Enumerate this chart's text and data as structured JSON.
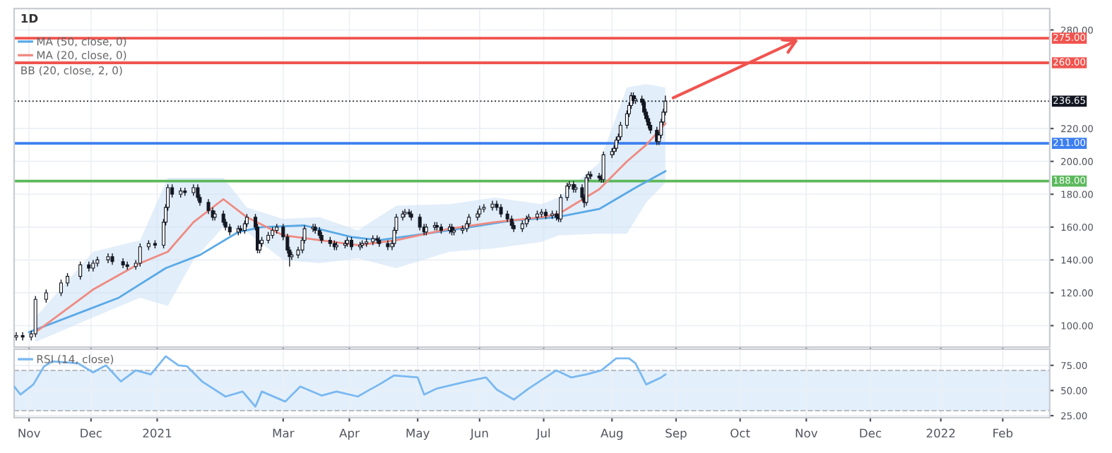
{
  "chart_data": [
    {
      "type": "candlestick",
      "title": "1D",
      "legend": "top left",
      "grid": true,
      "tick_labels": "y",
      "xlim": [
        "2020-10-26",
        "2022-02-23"
      ],
      "ylim": [
        87,
        293
      ],
      "yticks": [
        {
          "value": 100,
          "label": "100.00"
        },
        {
          "value": 120,
          "label": "120.00"
        },
        {
          "value": 140,
          "label": "140.00"
        },
        {
          "value": 160,
          "label": "160.00"
        },
        {
          "value": 180,
          "label": "180.00"
        },
        {
          "value": 200,
          "label": "200.00"
        },
        {
          "value": 220,
          "label": "220.00"
        },
        {
          "value": 280,
          "label": "280.00"
        }
      ],
      "xticks": [
        {
          "value": "2020-11-02",
          "label": null
        },
        {
          "value": "2020-12-01",
          "label": null
        },
        {
          "value": "2021-01-01",
          "label": null
        },
        {
          "value": "2021-03-01",
          "label": null
        },
        {
          "value": "2021-04-01",
          "label": null
        },
        {
          "value": "2021-05-03",
          "label": null
        },
        {
          "value": "2021-06-01",
          "label": null
        },
        {
          "value": "2021-07-01",
          "label": null
        },
        {
          "value": "2021-08-02",
          "label": null
        },
        {
          "value": "2021-09-01",
          "label": null
        },
        {
          "value": "2021-10-01",
          "label": null
        },
        {
          "value": "2021-11-01",
          "label": null
        },
        {
          "value": "2021-12-01",
          "label": null
        },
        {
          "value": "2022-01-03",
          "label": null
        },
        {
          "value": "2022-02-01",
          "label": null
        }
      ],
      "x": [
        "2020-10-27",
        "2020-10-30",
        "2020-11-03",
        "2020-11-05",
        "2020-11-10",
        "2020-11-17",
        "2020-11-20",
        "2020-11-26",
        "2020-11-30",
        "2020-12-02",
        "2020-12-04",
        "2020-12-09",
        "2020-12-11",
        "2020-12-16",
        "2020-12-18",
        "2020-12-22",
        "2020-12-24",
        "2020-12-28",
        "2020-12-31",
        "2021-01-04",
        "2021-01-05",
        "2021-01-06",
        "2021-01-08",
        "2021-01-12",
        "2021-01-14",
        "2021-01-18",
        "2021-01-20",
        "2021-01-21",
        "2021-01-25",
        "2021-01-27",
        "2021-01-28",
        "2021-02-01",
        "2021-02-02",
        "2021-02-04",
        "2021-02-08",
        "2021-02-09",
        "2021-02-11",
        "2021-02-12",
        "2021-02-16",
        "2021-02-17",
        "2021-02-18",
        "2021-02-19",
        "2021-02-22",
        "2021-02-24",
        "2021-02-26",
        "2021-03-01",
        "2021-03-03",
        "2021-03-04",
        "2021-03-05",
        "2021-03-08",
        "2021-03-10",
        "2021-03-11",
        "2021-03-15",
        "2021-03-16",
        "2021-03-18",
        "2021-03-19",
        "2021-03-23",
        "2021-03-25",
        "2021-03-26",
        "2021-03-30",
        "2021-03-31",
        "2021-04-02",
        "2021-04-06",
        "2021-04-07",
        "2021-04-09",
        "2021-04-12",
        "2021-04-14",
        "2021-04-15",
        "2021-04-19",
        "2021-04-21",
        "2021-04-22",
        "2021-04-23",
        "2021-04-26",
        "2021-04-27",
        "2021-04-29",
        "2021-04-30",
        "2021-05-04",
        "2021-05-06",
        "2021-05-07",
        "2021-05-11",
        "2021-05-12",
        "2021-05-14",
        "2021-05-18",
        "2021-05-19",
        "2021-05-20",
        "2021-05-24",
        "2021-05-26",
        "2021-05-27",
        "2021-05-31",
        "2021-06-01",
        "2021-06-03",
        "2021-06-07",
        "2021-06-09",
        "2021-06-11",
        "2021-06-14",
        "2021-06-16",
        "2021-06-17",
        "2021-06-21",
        "2021-06-23",
        "2021-06-24",
        "2021-06-28",
        "2021-06-30",
        "2021-07-02",
        "2021-07-05",
        "2021-07-07",
        "2021-07-08",
        "2021-07-09",
        "2021-07-12",
        "2021-07-13",
        "2021-07-15",
        "2021-07-16",
        "2021-07-19",
        "2021-07-20",
        "2021-07-21",
        "2021-07-22",
        "2021-07-23",
        "2021-07-27",
        "2021-07-28",
        "2021-07-29",
        "2021-08-02",
        "2021-08-03",
        "2021-08-04",
        "2021-08-05",
        "2021-08-06",
        "2021-08-09",
        "2021-08-10",
        "2021-08-11",
        "2021-08-12",
        "2021-08-13",
        "2021-08-16",
        "2021-08-17",
        "2021-08-18",
        "2021-08-19",
        "2021-08-20",
        "2021-08-23",
        "2021-08-24",
        "2021-08-25",
        "2021-08-26",
        "2021-08-27"
      ],
      "ohlc": [
        [
          93,
          96,
          91,
          94
        ],
        [
          94,
          96,
          91,
          93
        ],
        [
          93,
          97,
          91,
          95
        ],
        [
          95,
          118,
          93,
          116
        ],
        [
          116,
          122,
          114,
          120
        ],
        [
          120,
          128,
          118,
          126
        ],
        [
          126,
          132,
          124,
          130
        ],
        [
          130,
          139,
          128,
          137
        ],
        [
          137,
          139,
          133,
          135
        ],
        [
          135,
          140,
          133,
          138
        ],
        [
          138,
          142,
          136,
          140
        ],
        [
          140,
          144,
          138,
          142
        ],
        [
          142,
          144,
          137,
          139
        ],
        [
          139,
          141,
          135,
          137
        ],
        [
          137,
          139,
          134,
          136
        ],
        [
          136,
          140,
          134,
          138
        ],
        [
          138,
          150,
          136,
          148
        ],
        [
          148,
          152,
          146,
          150
        ],
        [
          150,
          152,
          147,
          149
        ],
        [
          149,
          165,
          147,
          163
        ],
        [
          163,
          174,
          161,
          172
        ],
        [
          172,
          186,
          170,
          184
        ],
        [
          184,
          186,
          178,
          180
        ],
        [
          180,
          184,
          178,
          182
        ],
        [
          182,
          184,
          179,
          181
        ],
        [
          181,
          186,
          179,
          184
        ],
        [
          184,
          186,
          176,
          178
        ],
        [
          178,
          180,
          173,
          175
        ],
        [
          175,
          177,
          168,
          170
        ],
        [
          170,
          172,
          164,
          166
        ],
        [
          166,
          170,
          164,
          168
        ],
        [
          168,
          170,
          161,
          163
        ],
        [
          163,
          165,
          158,
          160
        ],
        [
          160,
          162,
          155,
          157
        ],
        [
          157,
          161,
          155,
          159
        ],
        [
          159,
          161,
          156,
          158
        ],
        [
          158,
          164,
          156,
          162
        ],
        [
          162,
          168,
          160,
          166
        ],
        [
          166,
          168,
          158,
          160
        ],
        [
          160,
          162,
          144,
          146
        ],
        [
          146,
          152,
          144,
          150
        ],
        [
          150,
          154,
          148,
          152
        ],
        [
          152,
          157,
          150,
          155
        ],
        [
          155,
          160,
          153,
          158
        ],
        [
          158,
          162,
          156,
          160
        ],
        [
          160,
          162,
          152,
          154
        ],
        [
          154,
          156,
          144,
          146
        ],
        [
          146,
          148,
          136,
          142
        ],
        [
          142,
          145,
          140,
          143
        ],
        [
          143,
          148,
          141,
          146
        ],
        [
          146,
          154,
          144,
          152
        ],
        [
          152,
          161,
          150,
          159
        ],
        [
          159,
          162,
          157,
          160
        ],
        [
          160,
          162,
          156,
          158
        ],
        [
          158,
          160,
          153,
          155
        ],
        [
          155,
          157,
          150,
          152
        ],
        [
          152,
          154,
          148,
          150
        ],
        [
          150,
          152,
          146,
          148
        ],
        [
          148,
          151,
          146,
          149
        ],
        [
          149,
          152,
          147,
          150
        ],
        [
          150,
          154,
          148,
          152
        ],
        [
          152,
          154,
          146,
          148
        ],
        [
          148,
          151,
          146,
          149
        ],
        [
          149,
          152,
          147,
          150
        ],
        [
          150,
          153,
          148,
          151
        ],
        [
          151,
          155,
          149,
          153
        ],
        [
          153,
          155,
          150,
          152
        ],
        [
          152,
          154,
          148,
          150
        ],
        [
          150,
          152,
          146,
          148
        ],
        [
          148,
          152,
          146,
          150
        ],
        [
          150,
          160,
          148,
          158
        ],
        [
          158,
          168,
          156,
          166
        ],
        [
          166,
          170,
          164,
          168
        ],
        [
          168,
          171,
          166,
          169
        ],
        [
          169,
          171,
          166,
          168
        ],
        [
          168,
          170,
          164,
          166
        ],
        [
          166,
          168,
          158,
          160
        ],
        [
          160,
          162,
          155,
          157
        ],
        [
          157,
          162,
          155,
          160
        ],
        [
          160,
          163,
          158,
          161
        ],
        [
          161,
          163,
          158,
          160
        ],
        [
          160,
          162,
          156,
          158
        ],
        [
          158,
          162,
          156,
          160
        ],
        [
          160,
          162,
          155,
          157
        ],
        [
          157,
          160,
          155,
          158
        ],
        [
          158,
          161,
          156,
          159
        ],
        [
          159,
          164,
          157,
          162
        ],
        [
          162,
          168,
          160,
          166
        ],
        [
          166,
          170,
          164,
          168
        ],
        [
          168,
          173,
          166,
          171
        ],
        [
          171,
          174,
          169,
          172
        ],
        [
          172,
          176,
          170,
          174
        ],
        [
          174,
          176,
          170,
          172
        ],
        [
          172,
          174,
          166,
          168
        ],
        [
          168,
          170,
          163,
          165
        ],
        [
          165,
          167,
          159,
          161
        ],
        [
          161,
          163,
          157,
          159
        ],
        [
          159,
          164,
          157,
          162
        ],
        [
          162,
          167,
          160,
          165
        ],
        [
          165,
          168,
          163,
          166
        ],
        [
          166,
          170,
          164,
          168
        ],
        [
          168,
          171,
          166,
          169
        ],
        [
          169,
          171,
          165,
          167
        ],
        [
          167,
          170,
          165,
          168
        ],
        [
          168,
          170,
          164,
          166
        ],
        [
          166,
          168,
          163,
          165
        ],
        [
          165,
          180,
          163,
          178
        ],
        [
          178,
          187,
          176,
          185
        ],
        [
          185,
          188,
          183,
          186
        ],
        [
          186,
          188,
          181,
          183
        ],
        [
          183,
          186,
          181,
          184
        ],
        [
          184,
          186,
          176,
          178
        ],
        [
          178,
          180,
          172,
          175
        ],
        [
          175,
          192,
          173,
          190
        ],
        [
          190,
          194,
          188,
          192
        ],
        [
          192,
          194,
          189,
          191
        ],
        [
          191,
          193,
          188,
          190
        ],
        [
          190,
          192,
          187,
          189
        ],
        [
          189,
          206,
          187,
          204
        ],
        [
          204,
          208,
          202,
          206
        ],
        [
          206,
          210,
          204,
          208
        ],
        [
          208,
          215,
          206,
          213
        ],
        [
          213,
          217,
          211,
          215
        ],
        [
          215,
          224,
          213,
          222
        ],
        [
          222,
          231,
          220,
          229
        ],
        [
          229,
          236,
          227,
          234
        ],
        [
          234,
          242,
          232,
          240
        ],
        [
          240,
          242,
          235,
          237
        ],
        [
          237,
          240,
          235,
          238
        ],
        [
          238,
          240,
          234,
          236
        ],
        [
          236,
          238,
          228,
          230
        ],
        [
          230,
          232,
          224,
          226
        ],
        [
          226,
          228,
          220,
          222
        ],
        [
          222,
          224,
          217,
          219
        ],
        [
          219,
          221,
          210,
          212
        ],
        [
          212,
          218,
          210,
          216
        ],
        [
          216,
          226,
          214,
          224
        ],
        [
          224,
          232,
          222,
          230
        ],
        [
          230,
          240,
          228,
          236.65
        ]
      ],
      "series": [
        {
          "name": "MA (50, close, 0)",
          "type": "line",
          "color": "#5aa9e6",
          "x": [
            "2020-11-02",
            "2020-11-20",
            "2020-12-14",
            "2021-01-05",
            "2021-01-21",
            "2021-02-08",
            "2021-02-19",
            "2021-03-11",
            "2021-04-02",
            "2021-04-15",
            "2021-05-18",
            "2021-06-16",
            "2021-07-07",
            "2021-07-27",
            "2021-08-13",
            "2021-08-27"
          ],
          "values": [
            96,
            105,
            117,
            135,
            143,
            157,
            160,
            161,
            154,
            152,
            158,
            164,
            166,
            171,
            184,
            194
          ]
        },
        {
          "name": "MA (20, close, 0)",
          "type": "line",
          "color": "#ef8a80",
          "lower": [
            90,
            105,
            117,
            112,
            140,
            160,
            157,
            140,
            138,
            141,
            135,
            145,
            147,
            151,
            155,
            156,
            156,
            175,
            187
          ],
          "upper": [
            105,
            145,
            152,
            190,
            190,
            190,
            172,
            165,
            166,
            158,
            173,
            174,
            178,
            174,
            178,
            199,
            245,
            247,
            245
          ],
          "x": [
            "2020-11-05",
            "2020-12-02",
            "2020-12-24",
            "2021-01-06",
            "2021-01-18",
            "2021-02-01",
            "2021-02-12",
            "2021-03-01",
            "2021-03-18",
            "2021-04-05",
            "2021-04-23",
            "2021-05-18",
            "2021-06-08",
            "2021-06-30",
            "2021-07-08",
            "2021-07-27",
            "2021-08-09",
            "2021-08-18",
            "2021-08-27"
          ],
          "values": [
            96,
            122,
            138,
            145,
            163,
            177,
            166,
            155,
            152,
            149,
            152,
            159,
            163,
            166,
            168,
            183,
            200,
            210,
            223
          ]
        }
      ],
      "annotations": [
        "BB (20, close, 2, 0)"
      ],
      "ref_lines": [
        {
          "axis": "y",
          "value": 275,
          "label": "275.00",
          "color": "#f0544f",
          "line_style": "solid"
        },
        {
          "axis": "y",
          "value": 260,
          "label": "260.00",
          "color": "#f0544f",
          "line_style": "solid"
        },
        {
          "axis": "y",
          "value": 236.65,
          "label": "236.65",
          "color": "#131722",
          "line_style": "dotted"
        },
        {
          "axis": "y",
          "value": 211,
          "label": "211.00",
          "color": "#3d7ff0",
          "line_style": "solid"
        },
        {
          "axis": "y",
          "value": 188,
          "label": "188.00",
          "color": "#5cb85c",
          "line_style": "solid"
        }
      ]
    },
    {
      "type": "line",
      "legend": "top left",
      "grid": true,
      "xlim": [
        "2020-10-26",
        "2022-02-23"
      ],
      "ylim": [
        23,
        91
      ],
      "yticks": [
        {
          "value": 25,
          "label": "25.00"
        },
        {
          "value": 50,
          "label": "50.00"
        },
        {
          "value": 75,
          "label": "75.00"
        }
      ],
      "xticks": [
        {
          "value": "2020-11-02",
          "label": "Nov"
        },
        {
          "value": "2020-12-01",
          "label": "Dec"
        },
        {
          "value": "2021-01-01",
          "label": "2021"
        },
        {
          "value": "2021-03-01",
          "label": "Mar"
        },
        {
          "value": "2021-04-01",
          "label": "Apr"
        },
        {
          "value": "2021-05-03",
          "label": "May"
        },
        {
          "value": "2021-06-01",
          "label": "Jun"
        },
        {
          "value": "2021-07-01",
          "label": "Jul"
        },
        {
          "value": "2021-08-02",
          "label": "Aug"
        },
        {
          "value": "2021-09-01",
          "label": "Sep"
        },
        {
          "value": "2021-10-01",
          "label": "Oct"
        },
        {
          "value": "2021-11-01",
          "label": "Nov"
        },
        {
          "value": "2021-12-01",
          "label": "Dec"
        },
        {
          "value": "2022-01-03",
          "label": "2022"
        },
        {
          "value": "2022-02-01",
          "label": "Feb"
        }
      ],
      "series": [
        {
          "name": "RSI (14, close)",
          "color": "#7ab8f0",
          "x": [
            "2020-10-26",
            "2020-10-29",
            "2020-11-04",
            "2020-11-09",
            "2020-11-13",
            "2020-11-25",
            "2020-12-02",
            "2020-12-08",
            "2020-12-15",
            "2020-12-22",
            "2020-12-29",
            "2021-01-05",
            "2021-01-11",
            "2021-01-15",
            "2021-01-22",
            "2021-02-02",
            "2021-02-10",
            "2021-02-16",
            "2021-02-19",
            "2021-03-02",
            "2021-03-09",
            "2021-03-19",
            "2021-03-26",
            "2021-04-05",
            "2021-04-09",
            "2021-04-15",
            "2021-04-22",
            "2021-05-03",
            "2021-05-06",
            "2021-05-12",
            "2021-05-26",
            "2021-06-04",
            "2021-06-09",
            "2021-06-17",
            "2021-06-24",
            "2021-07-07",
            "2021-07-14",
            "2021-07-21",
            "2021-07-28",
            "2021-08-04",
            "2021-08-10",
            "2021-08-13",
            "2021-08-18",
            "2021-08-25",
            "2021-08-27"
          ],
          "values": [
            54,
            46,
            56,
            74,
            79,
            77,
            68,
            75,
            59,
            70,
            66,
            84,
            75,
            74,
            59,
            44,
            49,
            34,
            49,
            39,
            54,
            45,
            49,
            44,
            49,
            56,
            65,
            63,
            46,
            52,
            59,
            63,
            51,
            41,
            52,
            70,
            63,
            66,
            70,
            82,
            82,
            77,
            56,
            63,
            66
          ]
        }
      ],
      "bands": [
        {
          "axis": "y",
          "from": 30,
          "to": 70,
          "color": "#e3f0fc"
        }
      ],
      "ref_lines": [
        {
          "axis": "y",
          "value": 70,
          "color": "#b8bcc4",
          "line_style": "dashed"
        },
        {
          "axis": "y",
          "value": 30,
          "color": "#b8bcc4",
          "line_style": "dashed"
        }
      ]
    }
  ]
}
